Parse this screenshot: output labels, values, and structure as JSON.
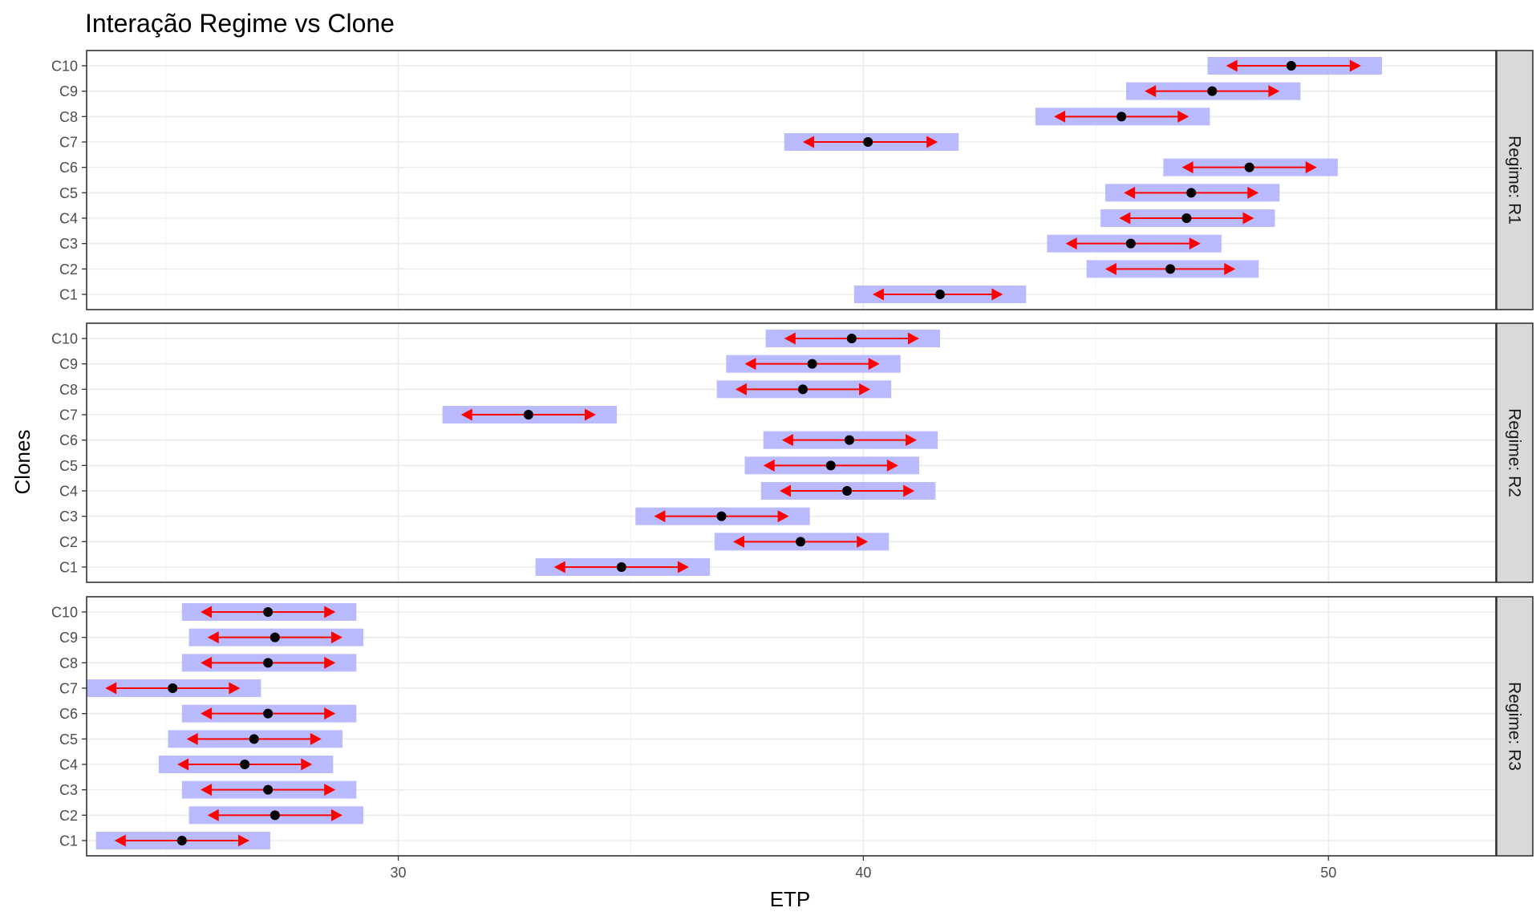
{
  "chart_data": {
    "type": "scatter",
    "title": "Interação Regime vs Clone",
    "xlabel": "ETP",
    "ylabel": "Clones",
    "xlim": [
      23.3,
      53.6
    ],
    "x_ticks": [
      30,
      40,
      50
    ],
    "grid": true,
    "categories": [
      "C1",
      "C2",
      "C3",
      "C4",
      "C5",
      "C6",
      "C7",
      "C8",
      "C9",
      "C10"
    ],
    "colors": {
      "band": "#b3b3ff",
      "arrow": "#ff0000",
      "point": "#000000"
    },
    "panels": [
      {
        "label": "Regime: R1",
        "points": [
          {
            "clone": "C1",
            "mean": 41.65,
            "band": [
              39.8,
              43.5
            ],
            "arrow": [
              40.2,
              43.0
            ]
          },
          {
            "clone": "C2",
            "mean": 46.6,
            "band": [
              44.8,
              48.5
            ],
            "arrow": [
              45.2,
              48.0
            ]
          },
          {
            "clone": "C3",
            "mean": 45.75,
            "band": [
              43.95,
              47.7
            ],
            "arrow": [
              44.35,
              47.25
            ]
          },
          {
            "clone": "C4",
            "mean": 46.95,
            "band": [
              45.1,
              48.85
            ],
            "arrow": [
              45.5,
              48.4
            ]
          },
          {
            "clone": "C5",
            "mean": 47.05,
            "band": [
              45.2,
              48.95
            ],
            "arrow": [
              45.6,
              48.5
            ]
          },
          {
            "clone": "C6",
            "mean": 48.3,
            "band": [
              46.45,
              50.2
            ],
            "arrow": [
              46.85,
              49.75
            ]
          },
          {
            "clone": "C7",
            "mean": 40.1,
            "band": [
              38.3,
              42.05
            ],
            "arrow": [
              38.7,
              41.6
            ]
          },
          {
            "clone": "C8",
            "mean": 45.55,
            "band": [
              43.7,
              47.45
            ],
            "arrow": [
              44.1,
              47.0
            ]
          },
          {
            "clone": "C9",
            "mean": 47.5,
            "band": [
              45.65,
              49.4
            ],
            "arrow": [
              46.05,
              48.95
            ]
          },
          {
            "clone": "C10",
            "mean": 49.2,
            "band": [
              47.4,
              51.15
            ],
            "arrow": [
              47.8,
              50.7
            ]
          }
        ]
      },
      {
        "label": "Regime: R2",
        "points": [
          {
            "clone": "C1",
            "mean": 34.8,
            "band": [
              32.95,
              36.7
            ],
            "arrow": [
              33.35,
              36.25
            ]
          },
          {
            "clone": "C2",
            "mean": 38.65,
            "band": [
              36.8,
              40.55
            ],
            "arrow": [
              37.2,
              40.1
            ]
          },
          {
            "clone": "C3",
            "mean": 36.95,
            "band": [
              35.1,
              38.85
            ],
            "arrow": [
              35.5,
              38.4
            ]
          },
          {
            "clone": "C4",
            "mean": 39.65,
            "band": [
              37.8,
              41.55
            ],
            "arrow": [
              38.2,
              41.1
            ]
          },
          {
            "clone": "C5",
            "mean": 39.3,
            "band": [
              37.45,
              41.2
            ],
            "arrow": [
              37.85,
              40.75
            ]
          },
          {
            "clone": "C6",
            "mean": 39.7,
            "band": [
              37.85,
              41.6
            ],
            "arrow": [
              38.25,
              41.15
            ]
          },
          {
            "clone": "C7",
            "mean": 32.8,
            "band": [
              30.95,
              34.7
            ],
            "arrow": [
              31.35,
              34.25
            ]
          },
          {
            "clone": "C8",
            "mean": 38.7,
            "band": [
              36.85,
              40.6
            ],
            "arrow": [
              37.25,
              40.15
            ]
          },
          {
            "clone": "C9",
            "mean": 38.9,
            "band": [
              37.05,
              40.8
            ],
            "arrow": [
              37.45,
              40.35
            ]
          },
          {
            "clone": "C10",
            "mean": 39.75,
            "band": [
              37.9,
              41.65
            ],
            "arrow": [
              38.3,
              41.2
            ]
          }
        ]
      },
      {
        "label": "Regime: R3",
        "points": [
          {
            "clone": "C1",
            "mean": 25.35,
            "band": [
              23.5,
              27.25
            ],
            "arrow": [
              23.9,
              26.8
            ]
          },
          {
            "clone": "C2",
            "mean": 27.35,
            "band": [
              25.5,
              29.25
            ],
            "arrow": [
              25.9,
              28.8
            ]
          },
          {
            "clone": "C3",
            "mean": 27.2,
            "band": [
              25.35,
              29.1
            ],
            "arrow": [
              25.75,
              28.65
            ]
          },
          {
            "clone": "C4",
            "mean": 26.7,
            "band": [
              24.85,
              28.6
            ],
            "arrow": [
              25.25,
              28.15
            ]
          },
          {
            "clone": "C5",
            "mean": 26.9,
            "band": [
              25.05,
              28.8
            ],
            "arrow": [
              25.45,
              28.35
            ]
          },
          {
            "clone": "C6",
            "mean": 27.2,
            "band": [
              25.35,
              29.1
            ],
            "arrow": [
              25.75,
              28.65
            ]
          },
          {
            "clone": "C7",
            "mean": 25.15,
            "band": [
              23.3,
              27.05
            ],
            "arrow": [
              23.7,
              26.6
            ]
          },
          {
            "clone": "C8",
            "mean": 27.2,
            "band": [
              25.35,
              29.1
            ],
            "arrow": [
              25.75,
              28.65
            ]
          },
          {
            "clone": "C9",
            "mean": 27.35,
            "band": [
              25.5,
              29.25
            ],
            "arrow": [
              25.9,
              28.8
            ]
          },
          {
            "clone": "C10",
            "mean": 27.2,
            "band": [
              25.35,
              29.1
            ],
            "arrow": [
              25.75,
              28.65
            ]
          }
        ]
      }
    ]
  }
}
